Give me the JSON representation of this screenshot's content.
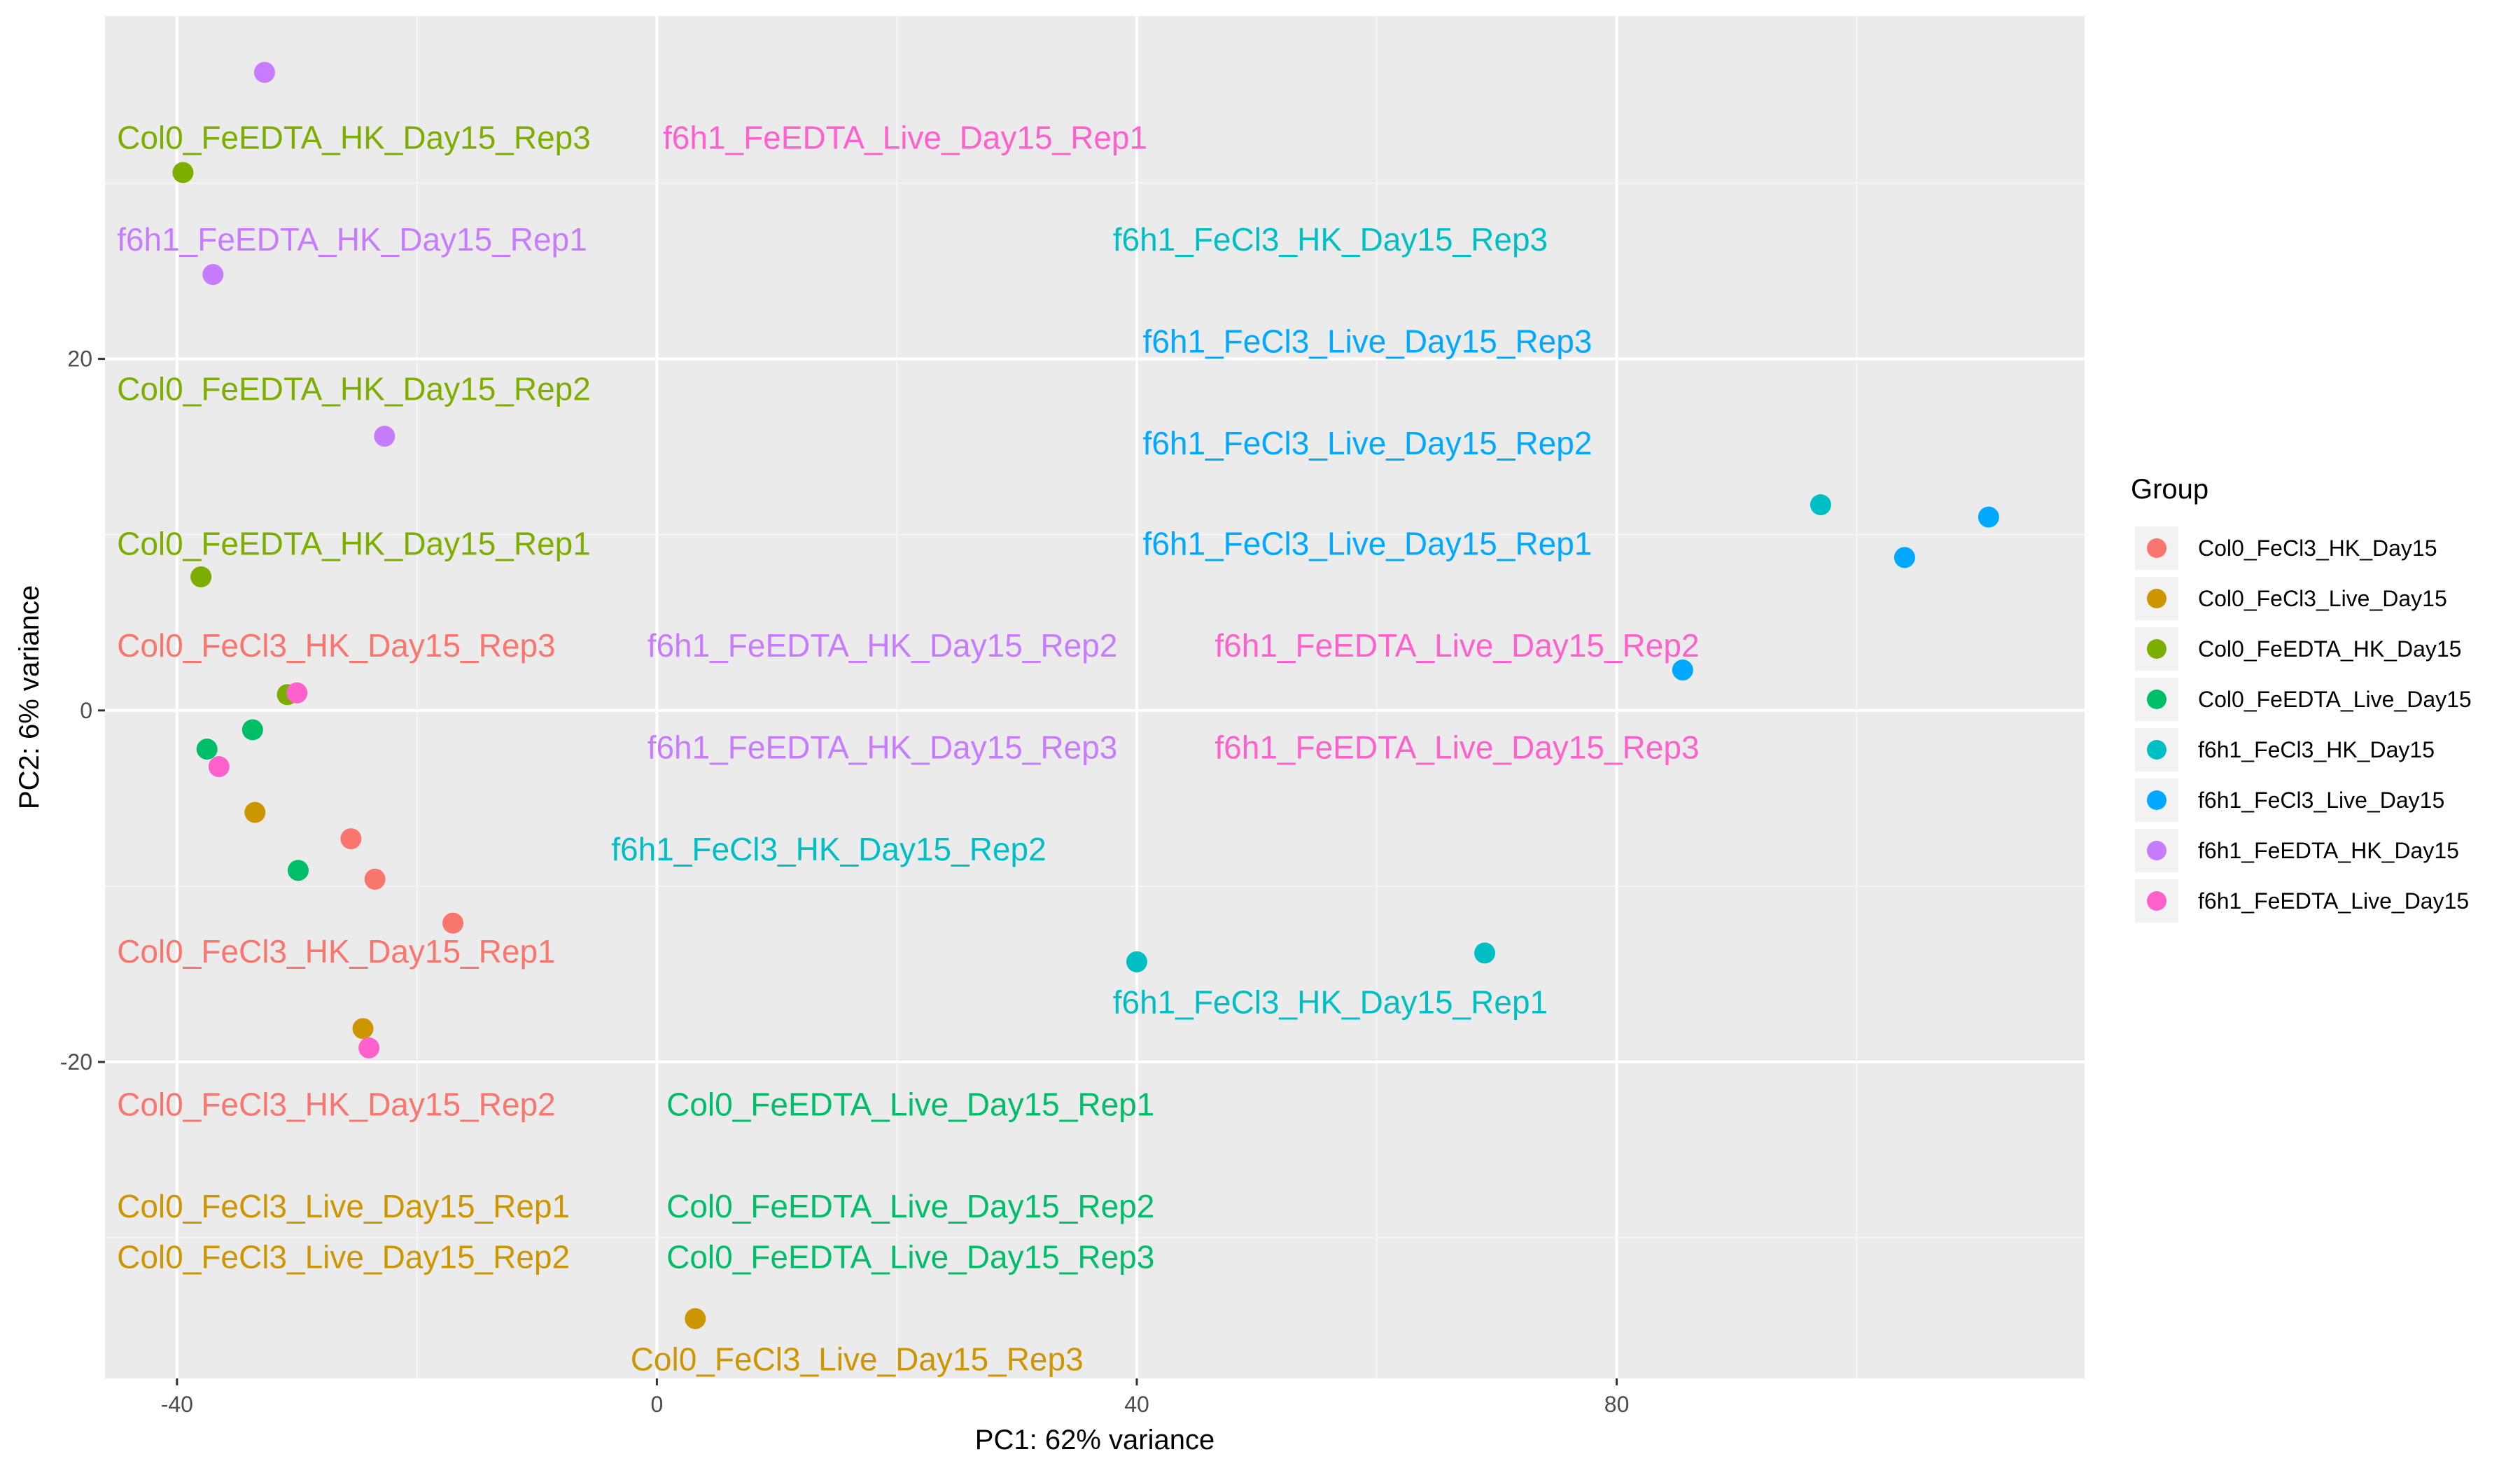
{
  "chart_data": {
    "type": "scatter",
    "xlabel": "PC1: 62% variance",
    "ylabel": "PC2: 6% variance",
    "xlim": [
      -46,
      119
    ],
    "ylim": [
      -38,
      39.5
    ],
    "x_ticks": [
      -40,
      0,
      40,
      80
    ],
    "y_ticks": [
      -20,
      0,
      20
    ],
    "grid": true,
    "legend": {
      "title": "Group",
      "position": "right"
    },
    "series": [
      {
        "name": "Col0_FeCl3_HK_Day15",
        "color": "#F8766D",
        "points": [
          {
            "x": -25.5,
            "y": -7.3
          },
          {
            "x": -23.5,
            "y": -9.6
          },
          {
            "x": -17.0,
            "y": -12.1
          }
        ]
      },
      {
        "name": "Col0_FeCl3_Live_Day15",
        "color": "#CD9600",
        "points": [
          {
            "x": -33.5,
            "y": -5.8
          },
          {
            "x": -24.5,
            "y": -18.1
          },
          {
            "x": 3.2,
            "y": -34.6
          }
        ]
      },
      {
        "name": "Col0_FeEDTA_HK_Day15",
        "color": "#7CAE00",
        "points": [
          {
            "x": -39.5,
            "y": 30.6
          },
          {
            "x": -38.0,
            "y": 7.6
          },
          {
            "x": -30.8,
            "y": 0.9
          }
        ]
      },
      {
        "name": "Col0_FeEDTA_Live_Day15",
        "color": "#00BE67",
        "points": [
          {
            "x": -37.5,
            "y": -2.2
          },
          {
            "x": -33.7,
            "y": -1.1
          },
          {
            "x": -29.9,
            "y": -9.1
          }
        ]
      },
      {
        "name": "f6h1_FeCl3_HK_Day15",
        "color": "#00BFC4",
        "points": [
          {
            "x": 40.0,
            "y": -14.3
          },
          {
            "x": 69.0,
            "y": -13.8
          },
          {
            "x": 97.0,
            "y": 11.7
          }
        ]
      },
      {
        "name": "f6h1_FeCl3_Live_Day15",
        "color": "#00A9FF",
        "points": [
          {
            "x": 85.5,
            "y": 2.3
          },
          {
            "x": 104.0,
            "y": 8.7
          },
          {
            "x": 111.0,
            "y": 11.0
          }
        ]
      },
      {
        "name": "f6h1_FeEDTA_HK_Day15",
        "color": "#C77CFF",
        "points": [
          {
            "x": -32.7,
            "y": 36.3
          },
          {
            "x": -37.0,
            "y": 24.8
          },
          {
            "x": -22.7,
            "y": 15.6
          }
        ]
      },
      {
        "name": "f6h1_FeEDTA_Live_Day15",
        "color": "#FF61CC",
        "points": [
          {
            "x": -30.0,
            "y": 1.0
          },
          {
            "x": -36.5,
            "y": -3.2
          },
          {
            "x": -24.0,
            "y": -19.2
          }
        ]
      }
    ],
    "annotations": [
      {
        "text": "Col0_FeEDTA_HK_Day15_Rep3",
        "x": -45,
        "y": 32.6,
        "anchor": "start",
        "color": "#7CAE00"
      },
      {
        "text": "f6h1_FeEDTA_Live_Day15_Rep1",
        "x": 0.5,
        "y": 32.6,
        "anchor": "start",
        "color": "#FF61CC"
      },
      {
        "text": "f6h1_FeEDTA_HK_Day15_Rep1",
        "x": -45,
        "y": 26.8,
        "anchor": "start",
        "color": "#C77CFF"
      },
      {
        "text": "f6h1_FeCl3_HK_Day15_Rep3",
        "x": 38,
        "y": 26.8,
        "anchor": "start",
        "color": "#00BFC4"
      },
      {
        "text": "f6h1_FeCl3_Live_Day15_Rep3",
        "x": 40.5,
        "y": 21.0,
        "anchor": "start",
        "color": "#00A9FF"
      },
      {
        "text": "Col0_FeEDTA_HK_Day15_Rep2",
        "x": -45,
        "y": 18.3,
        "anchor": "start",
        "color": "#7CAE00"
      },
      {
        "text": "f6h1_FeCl3_Live_Day15_Rep2",
        "x": 40.5,
        "y": 15.2,
        "anchor": "start",
        "color": "#00A9FF"
      },
      {
        "text": "Col0_FeEDTA_HK_Day15_Rep1",
        "x": -45,
        "y": 9.5,
        "anchor": "start",
        "color": "#7CAE00"
      },
      {
        "text": "f6h1_FeCl3_Live_Day15_Rep1",
        "x": 40.5,
        "y": 9.5,
        "anchor": "start",
        "color": "#00A9FF"
      },
      {
        "text": "Col0_FeCl3_HK_Day15_Rep3",
        "x": -45,
        "y": 3.7,
        "anchor": "start",
        "color": "#F8766D"
      },
      {
        "text": "f6h1_FeEDTA_HK_Day15_Rep2",
        "x": -0.8,
        "y": 3.7,
        "anchor": "start",
        "color": "#C77CFF"
      },
      {
        "text": "f6h1_FeEDTA_Live_Day15_Rep2",
        "x": 46.5,
        "y": 3.7,
        "anchor": "start",
        "color": "#FF61CC"
      },
      {
        "text": "f6h1_FeEDTA_HK_Day15_Rep3",
        "x": -0.8,
        "y": -2.1,
        "anchor": "start",
        "color": "#C77CFF"
      },
      {
        "text": "f6h1_FeEDTA_Live_Day15_Rep3",
        "x": 46.5,
        "y": -2.1,
        "anchor": "start",
        "color": "#FF61CC"
      },
      {
        "text": "f6h1_FeCl3_HK_Day15_Rep2",
        "x": -3.8,
        "y": -7.9,
        "anchor": "start",
        "color": "#00BFC4"
      },
      {
        "text": "Col0_FeCl3_HK_Day15_Rep1",
        "x": -45,
        "y": -13.7,
        "anchor": "start",
        "color": "#F8766D"
      },
      {
        "text": "f6h1_FeCl3_HK_Day15_Rep1",
        "x": 38,
        "y": -16.6,
        "anchor": "start",
        "color": "#00BFC4"
      },
      {
        "text": "Col0_FeCl3_HK_Day15_Rep2",
        "x": -45,
        "y": -22.4,
        "anchor": "start",
        "color": "#F8766D"
      },
      {
        "text": "Col0_FeEDTA_Live_Day15_Rep1",
        "x": 0.8,
        "y": -22.4,
        "anchor": "start",
        "color": "#00BE67"
      },
      {
        "text": "Col0_FeCl3_Live_Day15_Rep1",
        "x": -45,
        "y": -28.2,
        "anchor": "start",
        "color": "#CD9600"
      },
      {
        "text": "Col0_FeEDTA_Live_Day15_Rep2",
        "x": 0.8,
        "y": -28.2,
        "anchor": "start",
        "color": "#00BE67"
      },
      {
        "text": "Col0_FeCl3_Live_Day15_Rep2",
        "x": -45,
        "y": -31.1,
        "anchor": "start",
        "color": "#CD9600"
      },
      {
        "text": "Col0_FeEDTA_Live_Day15_Rep3",
        "x": 0.8,
        "y": -31.1,
        "anchor": "start",
        "color": "#00BE67"
      },
      {
        "text": "Col0_FeCl3_Live_Day15_Rep3",
        "x": -2.2,
        "y": -36.9,
        "anchor": "start",
        "color": "#CD9600"
      }
    ]
  }
}
